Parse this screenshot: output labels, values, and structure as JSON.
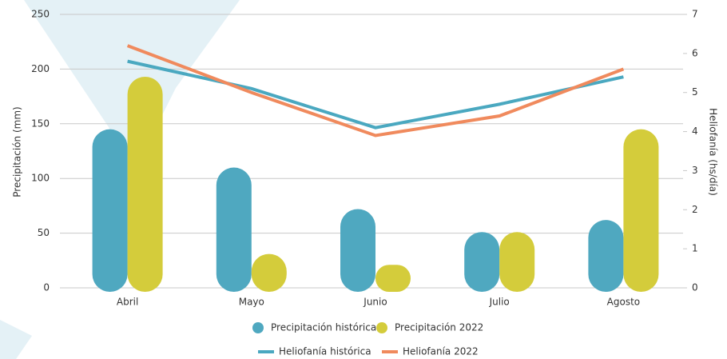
{
  "chart_data": {
    "type": "combo",
    "categories": [
      "Abril",
      "Mayo",
      "Junio",
      "Julio",
      "Agosto"
    ],
    "y_label": "Precipitación (mm)",
    "y2_label": "Heliofanía (hs/día)",
    "ylim": [
      0,
      250
    ],
    "yticks": [
      0,
      50,
      100,
      150,
      200,
      250
    ],
    "y2lim": [
      0,
      7
    ],
    "y2ticks": [
      0,
      1,
      2,
      3,
      4,
      5,
      6,
      7
    ],
    "grid": true,
    "series": [
      {
        "name": "Precipitación histórica",
        "type": "bar",
        "color": "#4fa8c0",
        "values": [
          145,
          110,
          72,
          51,
          62
        ]
      },
      {
        "name": "Precipitación 2022",
        "type": "bar",
        "color": "#d4cc3b",
        "values": [
          193,
          31,
          21,
          51,
          145
        ]
      },
      {
        "name": "Heliofanía histórica",
        "type": "line",
        "axis": "y2",
        "color": "#4aa8c0",
        "values": [
          5.8,
          5.1,
          4.1,
          4.7,
          5.4
        ]
      },
      {
        "name": "Heliofanía 2022",
        "type": "line",
        "axis": "y2",
        "color": "#f08a5d",
        "values": [
          6.2,
          5.0,
          3.9,
          4.4,
          5.6
        ]
      }
    ]
  }
}
